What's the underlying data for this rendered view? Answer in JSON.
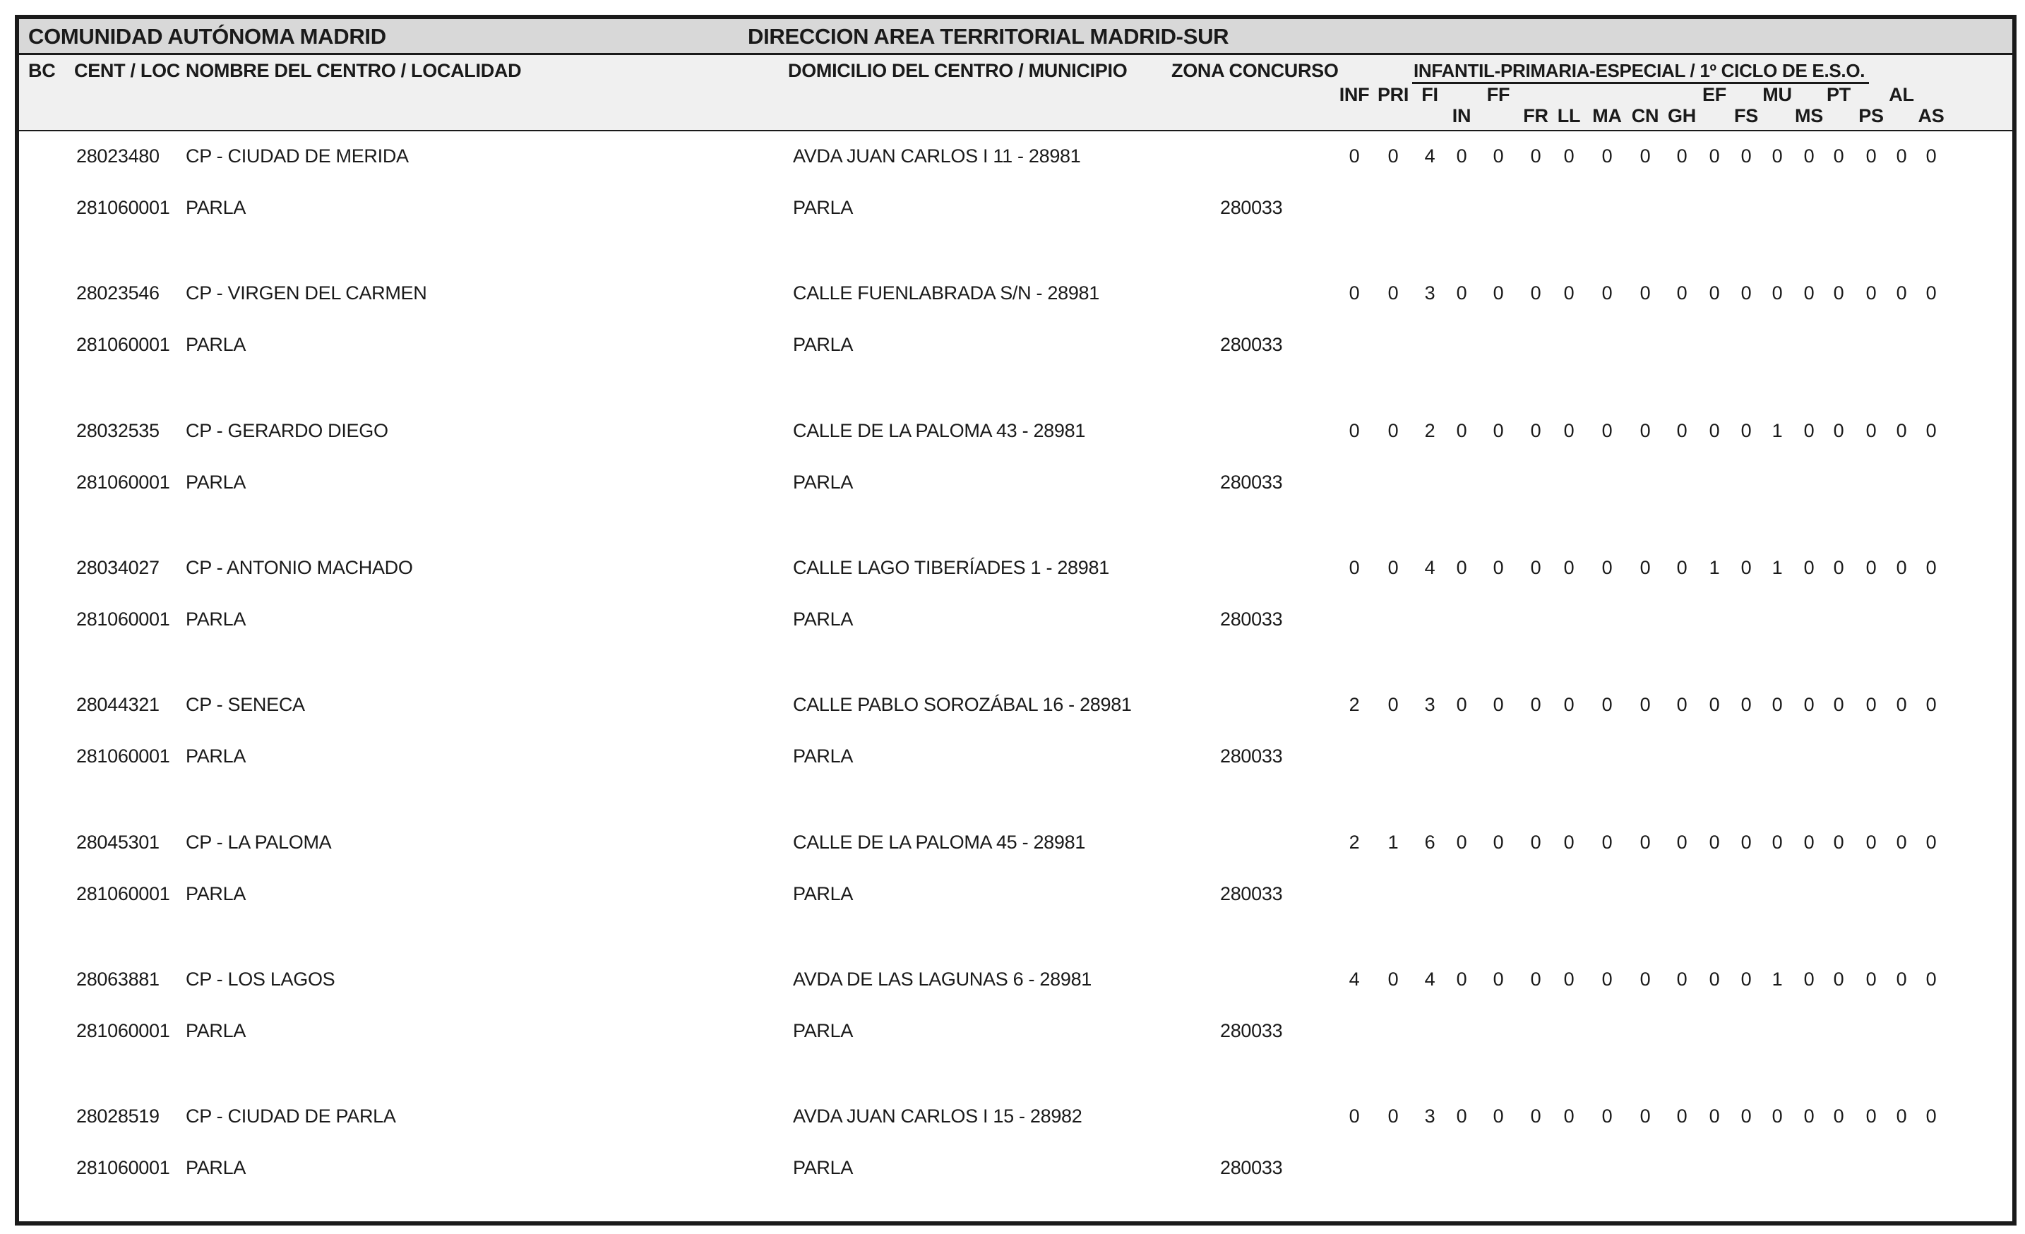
{
  "report": {
    "region_title": "COMUNIDAD AUTÓNOMA MADRID",
    "direction_title": "DIRECCION AREA TERRITORIAL MADRID-SUR"
  },
  "table": {
    "headers": {
      "bc": "BC",
      "cent_loc": "CENT / LOC",
      "nombre": "NOMBRE DEL CENTRO / LOCALIDAD",
      "domicilio": "DOMICILIO DEL CENTRO / MUNICIPIO",
      "zona": "ZONA CONCURSO",
      "group_title": "INFANTIL-PRIMARIA-ESPECIAL / 1º CICLO DE E.S.O.",
      "sub_top": [
        "INF",
        "PRI",
        "FI",
        "",
        "FF",
        "",
        "",
        "",
        "",
        "",
        "EF",
        "",
        "MU",
        "",
        "PT",
        "",
        "AL",
        ""
      ],
      "sub_bottom": [
        "",
        "",
        "",
        "IN",
        "",
        "FR",
        "LL",
        "MA",
        "CN",
        "GH",
        "",
        "FS",
        "",
        "MS",
        "",
        "PS",
        "",
        "AS"
      ]
    },
    "rows": [
      {
        "center_code": "28023480",
        "locality_code": "281060001",
        "center_name": "CP - CIUDAD DE MERIDA",
        "locality": "PARLA",
        "address": "AVDA JUAN CARLOS I 11 - 28981",
        "municipality": "PARLA",
        "zona_concurso": "280033",
        "values": [
          "0",
          "0",
          "4",
          "0",
          "0",
          "0",
          "0",
          "0",
          "0",
          "0",
          "0",
          "0",
          "0",
          "0",
          "0",
          "0",
          "0",
          "0"
        ]
      },
      {
        "center_code": "28023546",
        "locality_code": "281060001",
        "center_name": "CP - VIRGEN DEL CARMEN",
        "locality": "PARLA",
        "address": "CALLE FUENLABRADA S/N - 28981",
        "municipality": "PARLA",
        "zona_concurso": "280033",
        "values": [
          "0",
          "0",
          "3",
          "0",
          "0",
          "0",
          "0",
          "0",
          "0",
          "0",
          "0",
          "0",
          "0",
          "0",
          "0",
          "0",
          "0",
          "0"
        ]
      },
      {
        "center_code": "28032535",
        "locality_code": "281060001",
        "center_name": "CP - GERARDO DIEGO",
        "locality": "PARLA",
        "address": "CALLE DE LA PALOMA 43 - 28981",
        "municipality": "PARLA",
        "zona_concurso": "280033",
        "values": [
          "0",
          "0",
          "2",
          "0",
          "0",
          "0",
          "0",
          "0",
          "0",
          "0",
          "0",
          "0",
          "1",
          "0",
          "0",
          "0",
          "0",
          "0"
        ]
      },
      {
        "center_code": "28034027",
        "locality_code": "281060001",
        "center_name": "CP - ANTONIO MACHADO",
        "locality": "PARLA",
        "address": "CALLE LAGO TIBERÍADES 1 - 28981",
        "municipality": "PARLA",
        "zona_concurso": "280033",
        "values": [
          "0",
          "0",
          "4",
          "0",
          "0",
          "0",
          "0",
          "0",
          "0",
          "0",
          "1",
          "0",
          "1",
          "0",
          "0",
          "0",
          "0",
          "0"
        ]
      },
      {
        "center_code": "28044321",
        "locality_code": "281060001",
        "center_name": "CP - SENECA",
        "locality": "PARLA",
        "address": "CALLE PABLO SOROZÁBAL 16 - 28981",
        "municipality": "PARLA",
        "zona_concurso": "280033",
        "values": [
          "2",
          "0",
          "3",
          "0",
          "0",
          "0",
          "0",
          "0",
          "0",
          "0",
          "0",
          "0",
          "0",
          "0",
          "0",
          "0",
          "0",
          "0"
        ]
      },
      {
        "center_code": "28045301",
        "locality_code": "281060001",
        "center_name": "CP - LA PALOMA",
        "locality": "PARLA",
        "address": "CALLE DE LA PALOMA 45 - 28981",
        "municipality": "PARLA",
        "zona_concurso": "280033",
        "values": [
          "2",
          "1",
          "6",
          "0",
          "0",
          "0",
          "0",
          "0",
          "0",
          "0",
          "0",
          "0",
          "0",
          "0",
          "0",
          "0",
          "0",
          "0"
        ]
      },
      {
        "center_code": "28063881",
        "locality_code": "281060001",
        "center_name": "CP - LOS LAGOS",
        "locality": "PARLA",
        "address": "AVDA DE LAS LAGUNAS 6 - 28981",
        "municipality": "PARLA",
        "zona_concurso": "280033",
        "values": [
          "4",
          "0",
          "4",
          "0",
          "0",
          "0",
          "0",
          "0",
          "0",
          "0",
          "0",
          "0",
          "1",
          "0",
          "0",
          "0",
          "0",
          "0"
        ]
      },
      {
        "center_code": "28028519",
        "locality_code": "281060001",
        "center_name": "CP - CIUDAD DE PARLA",
        "locality": "PARLA",
        "address": "AVDA JUAN CARLOS I 15 - 28982",
        "municipality": "PARLA",
        "zona_concurso": "280033",
        "values": [
          "0",
          "0",
          "3",
          "0",
          "0",
          "0",
          "0",
          "0",
          "0",
          "0",
          "0",
          "0",
          "0",
          "0",
          "0",
          "0",
          "0",
          "0"
        ]
      }
    ]
  },
  "colors": {
    "band_bg": "#d8d8d8",
    "header_bg": "#f0f0f0",
    "line": "#1a1a1a"
  }
}
